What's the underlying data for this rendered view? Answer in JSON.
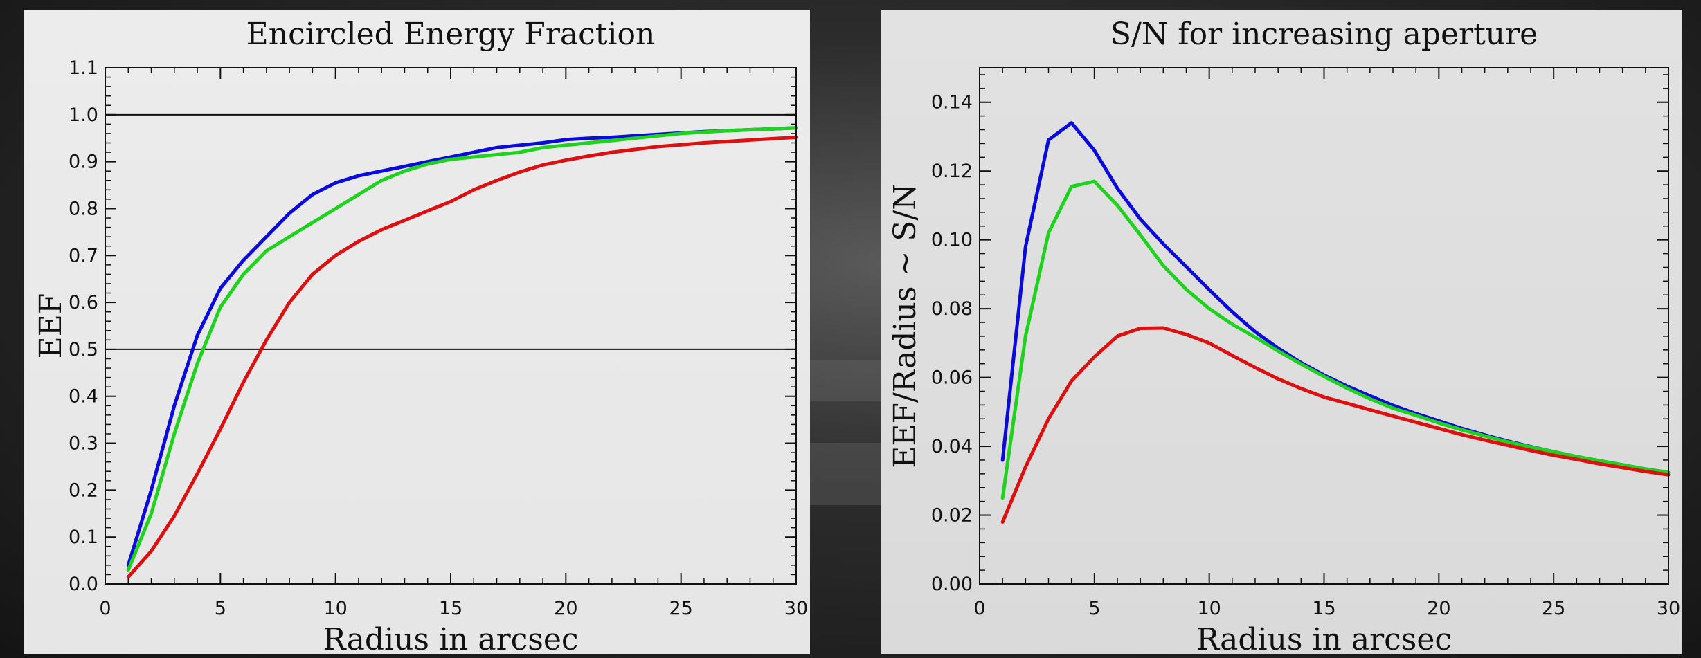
{
  "chart_data": [
    {
      "type": "line",
      "title": "Encircled Energy Fraction",
      "xlabel": "Radius in arcsec",
      "ylabel": "EEF",
      "xlim": [
        0,
        30
      ],
      "ylim": [
        0,
        1.1
      ],
      "x_ticks": [
        "0",
        "5",
        "10",
        "15",
        "20",
        "25",
        "30"
      ],
      "y_ticks": [
        "0.0",
        "0.1",
        "0.2",
        "0.3",
        "0.4",
        "0.5",
        "0.6",
        "0.7",
        "0.8",
        "0.9",
        "1.0",
        "1.1"
      ],
      "reference_lines": [
        1.0,
        0.5
      ],
      "grid": false,
      "x": [
        1,
        2,
        3,
        4,
        5,
        6,
        7,
        8,
        9,
        10,
        11,
        12,
        13,
        14,
        15,
        16,
        17,
        18,
        19,
        20,
        21,
        22,
        23,
        24,
        25,
        26,
        27,
        28,
        29,
        30
      ],
      "series": [
        {
          "color": "#0a0adb",
          "values": [
            0.04,
            0.2,
            0.38,
            0.53,
            0.63,
            0.69,
            0.74,
            0.79,
            0.83,
            0.855,
            0.87,
            0.88,
            0.89,
            0.9,
            0.91,
            0.92,
            0.93,
            0.935,
            0.94,
            0.947,
            0.95,
            0.952,
            0.955,
            0.958,
            0.961,
            0.964,
            0.966,
            0.968,
            0.97,
            0.972
          ]
        },
        {
          "color": "#1ed21e",
          "values": [
            0.03,
            0.15,
            0.32,
            0.47,
            0.59,
            0.66,
            0.71,
            0.74,
            0.77,
            0.8,
            0.83,
            0.86,
            0.88,
            0.895,
            0.905,
            0.91,
            0.915,
            0.92,
            0.93,
            0.935,
            0.94,
            0.945,
            0.95,
            0.955,
            0.96,
            0.963,
            0.966,
            0.968,
            0.97,
            0.972
          ]
        },
        {
          "color": "#dc1010",
          "values": [
            0.015,
            0.07,
            0.145,
            0.235,
            0.33,
            0.43,
            0.52,
            0.6,
            0.66,
            0.7,
            0.73,
            0.755,
            0.775,
            0.795,
            0.815,
            0.84,
            0.86,
            0.878,
            0.893,
            0.903,
            0.912,
            0.92,
            0.926,
            0.932,
            0.936,
            0.94,
            0.943,
            0.946,
            0.949,
            0.952
          ]
        }
      ]
    },
    {
      "type": "line",
      "title": "S/N for increasing aperture",
      "xlabel": "Radius in arcsec",
      "ylabel": "EEF/Radius ~ S/N",
      "xlim": [
        0,
        30
      ],
      "ylim": [
        0,
        0.15
      ],
      "x_ticks": [
        "0",
        "5",
        "10",
        "15",
        "20",
        "25",
        "30"
      ],
      "y_ticks": [
        "0.00",
        "0.02",
        "0.04",
        "0.06",
        "0.08",
        "0.10",
        "0.12",
        "0.14"
      ],
      "grid": false,
      "x": [
        1,
        2,
        3,
        4,
        5,
        6,
        7,
        8,
        9,
        10,
        11,
        12,
        13,
        14,
        15,
        16,
        17,
        18,
        19,
        20,
        21,
        22,
        23,
        24,
        25,
        26,
        27,
        28,
        29,
        30
      ],
      "series": [
        {
          "color": "#0a0adb",
          "values": [
            0.036,
            0.098,
            0.129,
            0.134,
            0.126,
            0.115,
            0.106,
            0.0988,
            0.0922,
            0.0855,
            0.0791,
            0.0733,
            0.0685,
            0.0643,
            0.0607,
            0.0575,
            0.0547,
            0.0519,
            0.0495,
            0.0474,
            0.0452,
            0.0433,
            0.0415,
            0.0399,
            0.0384,
            0.037,
            0.0358,
            0.0346,
            0.0334,
            0.0324
          ]
        },
        {
          "color": "#1ed21e",
          "values": [
            0.025,
            0.072,
            0.102,
            0.1155,
            0.117,
            0.11,
            0.1014,
            0.0925,
            0.0856,
            0.08,
            0.0755,
            0.0717,
            0.0677,
            0.0639,
            0.0603,
            0.0569,
            0.0538,
            0.0511,
            0.049,
            0.0468,
            0.0448,
            0.043,
            0.0413,
            0.0398,
            0.0384,
            0.037,
            0.0358,
            0.0346,
            0.0334,
            0.0324
          ]
        },
        {
          "color": "#dc1010",
          "values": [
            0.018,
            0.034,
            0.048,
            0.059,
            0.066,
            0.072,
            0.0743,
            0.0744,
            0.0725,
            0.07,
            0.0664,
            0.0629,
            0.0596,
            0.0568,
            0.0543,
            0.0525,
            0.0506,
            0.0488,
            0.047,
            0.0452,
            0.0434,
            0.0418,
            0.0403,
            0.0388,
            0.0374,
            0.0362,
            0.0349,
            0.0338,
            0.0327,
            0.0317
          ]
        }
      ]
    }
  ]
}
